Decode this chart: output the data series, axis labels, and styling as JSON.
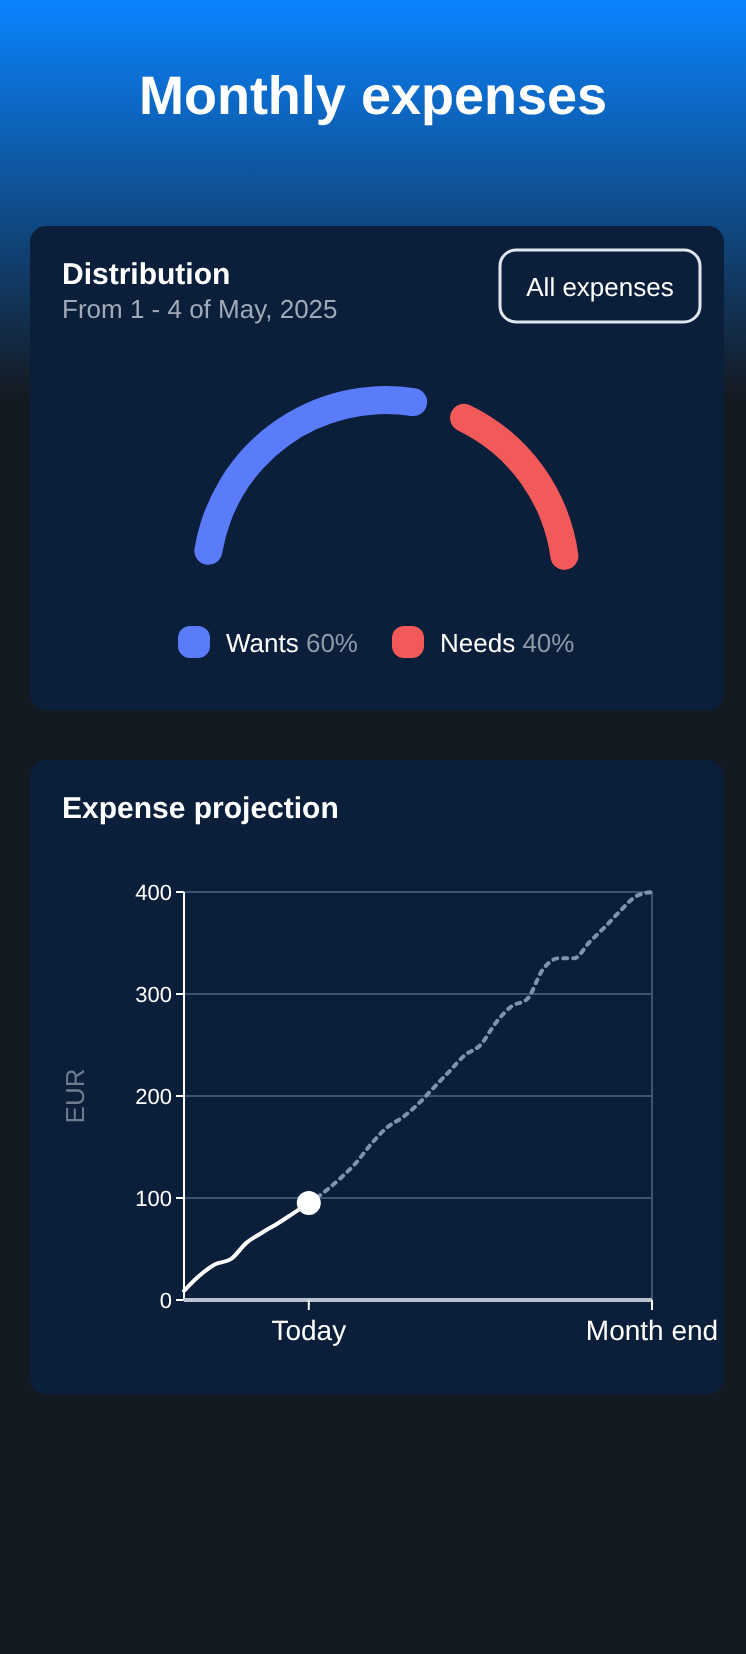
{
  "chart_data": [
    {
      "type": "donut",
      "title": "Distribution",
      "subtitle": "From 1 - 4 of May, 2025",
      "annotations": [
        "Monthly expenses",
        "All expenses"
      ],
      "categories": [
        "Wants",
        "Needs"
      ],
      "values": [
        60,
        40
      ],
      "value_labels": [
        "60%",
        "40%"
      ],
      "colors": [
        "#5b7cfa",
        "#f25a5a"
      ],
      "legend": "bottom"
    },
    {
      "type": "line",
      "title": "Expense projection",
      "ylabel": "EUR",
      "categories": [
        null,
        null,
        null,
        null,
        null,
        null,
        null,
        null,
        "Today",
        null,
        null,
        null,
        null,
        null,
        null,
        null,
        null,
        null,
        null,
        null,
        null,
        null,
        null,
        null,
        null,
        null,
        null,
        null,
        null,
        null,
        "Month end"
      ],
      "ylim": [
        0,
        400
      ],
      "yticks": [
        0,
        100,
        200,
        300,
        400
      ],
      "grid": "y",
      "series": [
        {
          "color": "#ffffff",
          "line_style": "solid",
          "values": [
            9,
            24,
            35,
            40,
            56,
            66,
            75,
            85,
            95,
            null,
            null,
            null,
            null,
            null,
            null,
            null,
            null,
            null,
            null,
            null,
            null,
            null,
            null,
            null,
            null,
            null,
            null,
            null,
            null,
            null,
            null
          ]
        },
        {
          "color": "#7f93ab",
          "line_style": "dotted",
          "values": [
            null,
            null,
            null,
            null,
            null,
            null,
            null,
            null,
            95,
            106,
            119,
            134,
            153,
            169,
            179,
            192,
            208,
            224,
            240,
            250,
            272,
            288,
            295,
            324,
            335,
            335,
            351,
            366,
            382,
            396,
            400
          ]
        },
        {
          "type": "scatter",
          "color": "#ffffff",
          "marker": "circle",
          "x": [
            "Today"
          ],
          "values": [
            95
          ]
        }
      ]
    }
  ]
}
